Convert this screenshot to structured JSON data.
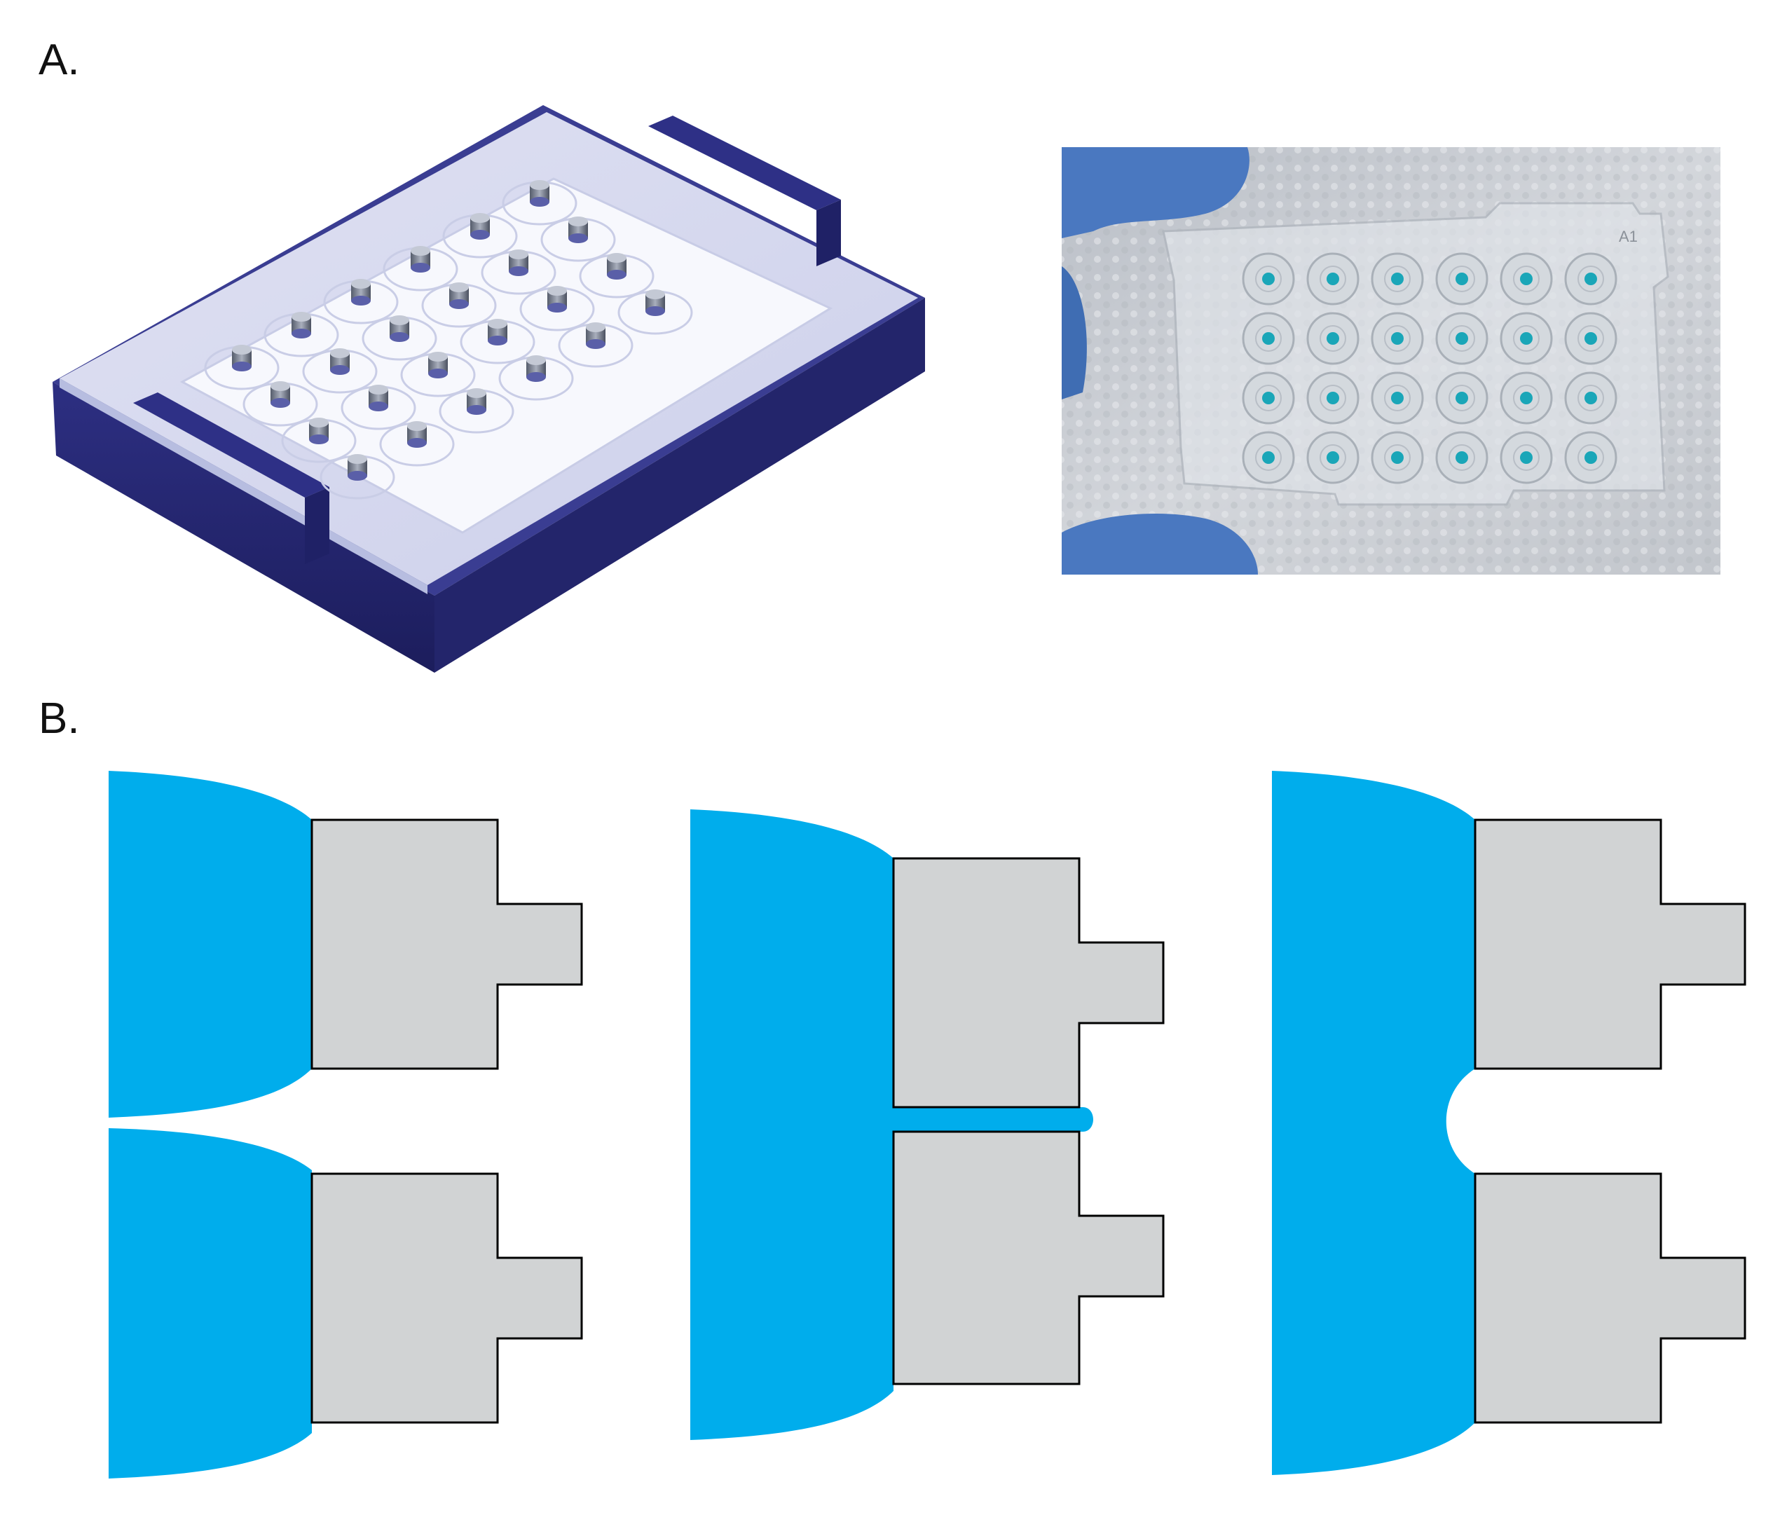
{
  "panels": {
    "a": {
      "label": "A.",
      "render": {
        "name": "microfluidic-plate-render",
        "well_count": 24,
        "rows": 4,
        "columns": 6
      },
      "photo": {
        "name": "microfluidic-plate-photo",
        "well_count": 24,
        "rows": 4,
        "columns": 6,
        "etched_text": "A1"
      }
    },
    "b": {
      "label": "B.",
      "diagrams": [
        {
          "name": "two-separate-droplets",
          "state": "separated"
        },
        {
          "name": "bridged-droplets",
          "state": "bridged"
        },
        {
          "name": "merged-droplet",
          "state": "merged"
        }
      ]
    }
  },
  "colors": {
    "liquid": "#00adec",
    "post": "#d1d3d4",
    "outline": "#000000",
    "frame": "#2b2d7a",
    "photo_background": "#c9cdd2",
    "glove": "#4a78c0"
  }
}
